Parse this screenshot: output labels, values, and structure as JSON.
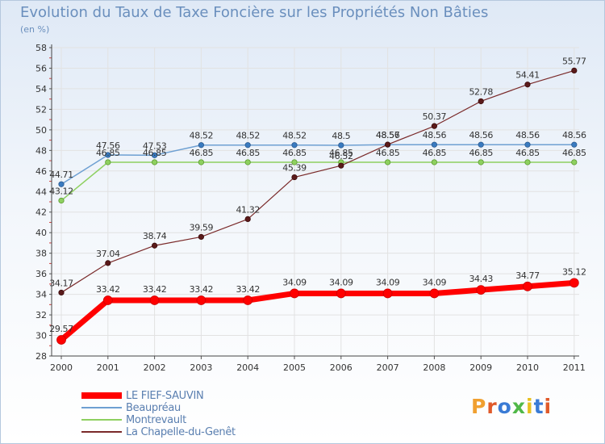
{
  "header": {
    "title": "Evolution du Taux de Taxe Foncière sur les Propriétés Non Bâties",
    "unit": "(en %)"
  },
  "logo": {
    "text": "Proxiti",
    "colors": [
      "#f0a030",
      "#e05a2a",
      "#3a7bd5",
      "#50b848",
      "#e8c020",
      "#3a7bd5",
      "#e05a2a"
    ]
  },
  "chart_data": {
    "type": "line",
    "title": "Evolution du Taux de Taxe Foncière sur les Propriétés Non Bâties",
    "ylabel": "(en %)",
    "xlabel": "",
    "categories": [
      "2000",
      "2001",
      "2002",
      "2003",
      "2004",
      "2005",
      "2006",
      "2007",
      "2008",
      "2009",
      "2010",
      "2011"
    ],
    "ylim": [
      28,
      58
    ],
    "yticks": [
      28,
      30,
      32,
      34,
      36,
      38,
      40,
      42,
      44,
      46,
      48,
      50,
      52,
      54,
      56,
      58
    ],
    "grid": true,
    "legend_position": "bottom-left",
    "series": [
      {
        "name": "LE FIEF-SAUVIN",
        "color": "#ff0000",
        "values": [
          29.57,
          33.42,
          33.42,
          33.42,
          33.42,
          34.09,
          34.09,
          34.09,
          34.09,
          34.43,
          34.77,
          35.12
        ],
        "labels": [
          "29.57",
          "33.42",
          "33.42",
          "33.42",
          "33.42",
          "34.09",
          "34.09",
          "34.09",
          "34.09",
          "34.43",
          "34.77",
          "35.12"
        ]
      },
      {
        "name": "Beaupréau",
        "color": "#6ea0d2",
        "values": [
          44.71,
          47.56,
          47.53,
          48.52,
          48.52,
          48.52,
          48.5,
          48.56,
          48.56,
          48.56,
          48.56,
          48.56
        ],
        "labels": [
          "44.71",
          "47.56",
          "47.53",
          "48.52",
          "48.52",
          "48.52",
          "48.5",
          "48.56",
          "48.56",
          "48.56",
          "48.56",
          "48.56"
        ]
      },
      {
        "name": "Montrevault",
        "color": "#8ed060",
        "values": [
          43.12,
          46.85,
          46.85,
          46.85,
          46.85,
          46.85,
          46.85,
          46.85,
          46.85,
          46.85,
          46.85,
          46.85
        ],
        "labels": [
          "43.12",
          "46.85",
          "46.85",
          "46.85",
          "46.85",
          "46.85",
          "46.85",
          "46.85",
          "46.85",
          "46.85",
          "46.85",
          "46.85"
        ]
      },
      {
        "name": "La Chapelle-du-Genêt",
        "color": "#7a2a2a",
        "values": [
          34.17,
          37.04,
          38.74,
          39.59,
          41.32,
          45.39,
          46.52,
          48.57,
          50.37,
          52.78,
          54.41,
          55.77
        ],
        "labels": [
          "34.17",
          "37.04",
          "38.74",
          "39.59",
          "41.32",
          "45.39",
          "46.52",
          "48.57",
          "50.37",
          "52.78",
          "54.41",
          "55.77"
        ]
      }
    ]
  }
}
